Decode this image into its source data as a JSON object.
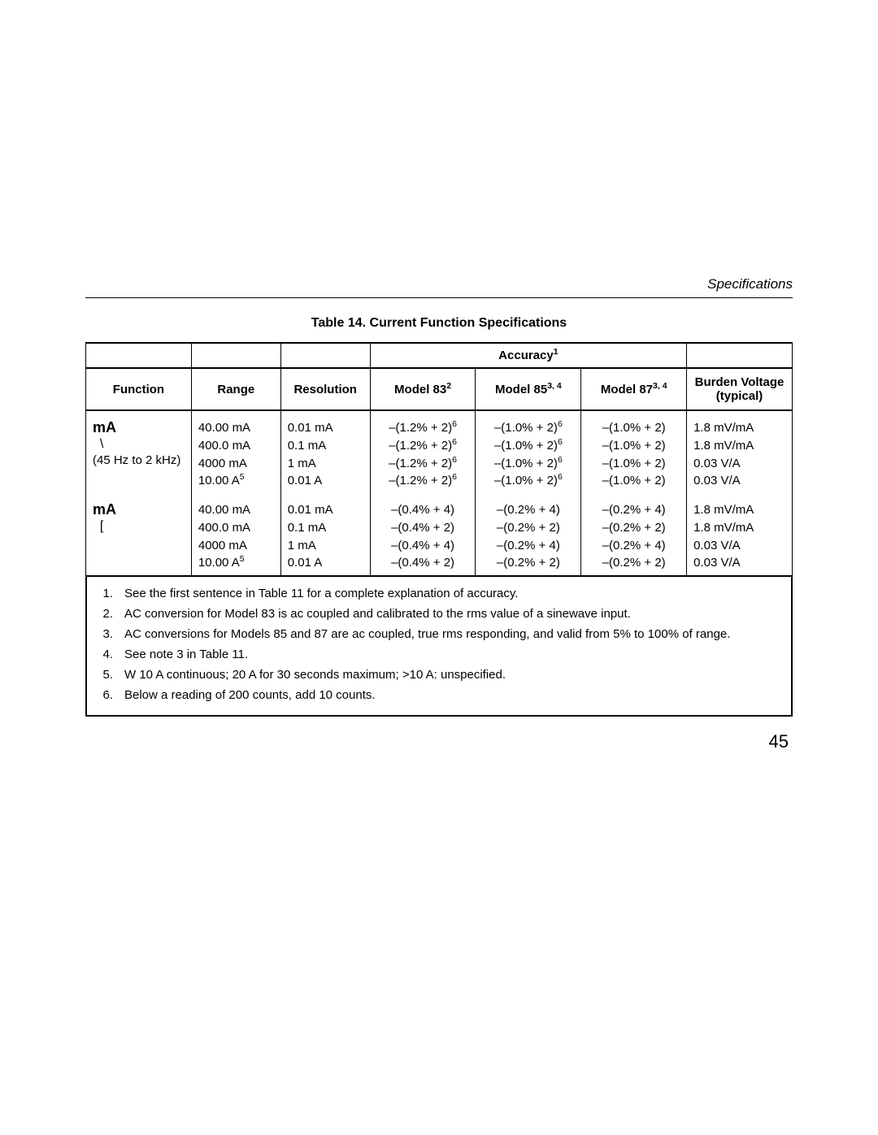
{
  "header": {
    "section": "Specifications"
  },
  "table": {
    "title": "Table 14. Current Function Specifications",
    "type": "table",
    "columns": {
      "function": "Function",
      "range": "Range",
      "resolution": "Resolution",
      "accuracy_group": "Accuracy",
      "accuracy_group_sup": "1",
      "model83": "Model 83",
      "model83_sup": "2",
      "model85": "Model 85",
      "model85_sup": "3, 4",
      "model87": "Model 87",
      "model87_sup": "3, 4",
      "burden": "Burden Voltage (typical)"
    },
    "groups": [
      {
        "function_label": "mA",
        "function_sym": "\\",
        "function_sub": "(45 Hz to 2 kHz)",
        "rows": [
          {
            "range": "40.00 mA",
            "resolution": "0.01 mA",
            "m83": "–(1.2% + 2)",
            "m83sup": "6",
            "m85": "–(1.0% + 2)",
            "m85sup": "6",
            "m87": "–(1.0% + 2)",
            "bv": "1.8 mV/mA"
          },
          {
            "range": "400.0 mA",
            "resolution": "0.1 mA",
            "m83": "–(1.2% + 2)",
            "m83sup": "6",
            "m85": "–(1.0% + 2)",
            "m85sup": "6",
            "m87": "–(1.0% + 2)",
            "bv": "1.8 mV/mA"
          },
          {
            "range": "4000 mA",
            "resolution": "1 mA",
            "m83": "–(1.2% + 2)",
            "m83sup": "6",
            "m85": "–(1.0% + 2)",
            "m85sup": "6",
            "m87": "–(1.0% + 2)",
            "bv": "0.03 V/A"
          },
          {
            "range": "10.00 A",
            "rangesup": "5",
            "resolution": "0.01 A",
            "m83": "–(1.2% + 2)",
            "m83sup": "6",
            "m85": "–(1.0% + 2)",
            "m85sup": "6",
            "m87": "–(1.0% + 2)",
            "bv": "0.03 V/A"
          }
        ]
      },
      {
        "function_label": "mA",
        "function_sym": "[",
        "rows": [
          {
            "range": "40.00 mA",
            "resolution": "0.01 mA",
            "m83": "–(0.4% + 4)",
            "m85": "–(0.2% + 4)",
            "m87": "–(0.2% + 4)",
            "bv": "1.8 mV/mA"
          },
          {
            "range": "400.0 mA",
            "resolution": "0.1 mA",
            "m83": "–(0.4% + 2)",
            "m85": "–(0.2% + 2)",
            "m87": "–(0.2% + 2)",
            "bv": "1.8 mV/mA"
          },
          {
            "range": "4000 mA",
            "resolution": "1 mA",
            "m83": "–(0.4% + 4)",
            "m85": "–(0.2% + 4)",
            "m87": "–(0.2% + 4)",
            "bv": "0.03 V/A"
          },
          {
            "range": "10.00 A",
            "rangesup": "5",
            "resolution": "0.01 A",
            "m83": "–(0.4% + 2)",
            "m85": "–(0.2% + 2)",
            "m87": "–(0.2% + 2)",
            "bv": "0.03 V/A"
          }
        ]
      }
    ]
  },
  "footnotes": [
    {
      "n": "1.",
      "text": "See the first sentence in Table 11 for a complete explanation of accuracy."
    },
    {
      "n": "2.",
      "text": "AC conversion for Model 83 is ac coupled and calibrated to the rms value of a sinewave input."
    },
    {
      "n": "3.",
      "text": "AC conversions for Models 85 and 87 are ac coupled, true rms responding, and valid from 5% to 100% of range."
    },
    {
      "n": "4.",
      "text": "See note 3 in Table 11."
    },
    {
      "n": "5.",
      "text": "W 10 A continuous; 20 A for 30 seconds maximum; >10 A:  unspecified."
    },
    {
      "n": "6.",
      "text": "Below a reading of 200 counts, add 10 counts."
    }
  ],
  "page_number": "45",
  "style": {
    "font_family": "Arial, Helvetica, sans-serif",
    "text_color": "#000000",
    "background_color": "#ffffff",
    "border_color": "#000000"
  }
}
